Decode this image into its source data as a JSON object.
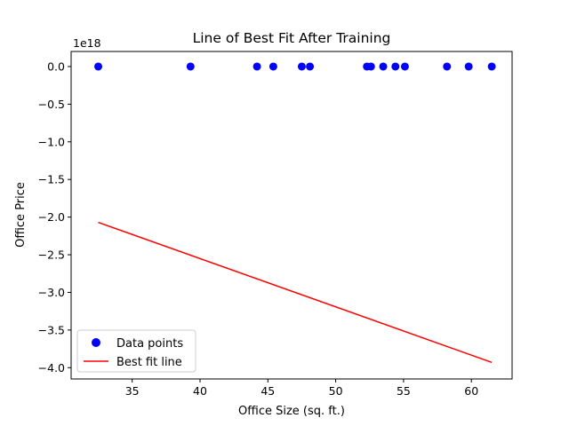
{
  "chart_data": {
    "type": "scatter",
    "title": "Line of Best Fit After Training",
    "xlabel": "Office Size (sq. ft.)",
    "ylabel": "Office Price",
    "y_offset_text": "1e18",
    "xlim": [
      30.5,
      63.0
    ],
    "ylim": [
      -4.15,
      0.2
    ],
    "y_unit_multiplier": "1e18",
    "x_ticks": [
      35,
      40,
      45,
      50,
      55,
      60
    ],
    "y_ticks": [
      0.0,
      -0.5,
      -1.0,
      -1.5,
      -2.0,
      -2.5,
      -3.0,
      -3.5,
      -4.0
    ],
    "x_tick_labels": [
      "35",
      "40",
      "45",
      "50",
      "55",
      "60"
    ],
    "y_tick_labels": [
      "0.0",
      "−0.5",
      "−1.0",
      "−1.5",
      "−2.0",
      "−2.5",
      "−3.0",
      "−3.5",
      "−4.0"
    ],
    "grid": false,
    "legend_position": "lower-left",
    "series": [
      {
        "name": "Data points",
        "kind": "scatter",
        "color": "#0000ff",
        "x": [
          32.5,
          39.3,
          44.2,
          45.4,
          47.5,
          48.1,
          52.3,
          52.6,
          53.5,
          54.4,
          55.1,
          58.2,
          59.8,
          61.5
        ],
        "y": [
          0,
          0,
          0,
          0,
          0,
          0,
          0,
          0,
          0,
          0,
          0,
          0,
          0,
          0
        ]
      },
      {
        "name": "Best fit line",
        "kind": "line",
        "color": "#ff0000",
        "x": [
          32.5,
          61.5
        ],
        "y": [
          -2.07,
          -3.93
        ]
      }
    ]
  }
}
